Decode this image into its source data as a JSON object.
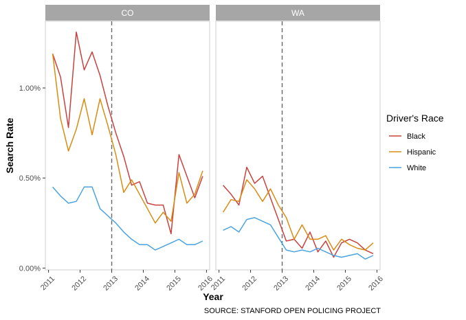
{
  "chart_data": {
    "type": "line",
    "facets": [
      "CO",
      "WA"
    ],
    "xlabel": "Year",
    "ylabel": "Search Rate",
    "caption": "SOURCE: STANFORD OPEN POLICING PROJECT",
    "x_ticks": [
      2011,
      2012,
      2013,
      2014,
      2015,
      2016
    ],
    "xlim": [
      2010.9,
      2016.1
    ],
    "y_ticks": [
      0,
      0.5,
      1.0
    ],
    "y_tick_labels": [
      "0.00%",
      "0.50%",
      "1.00%"
    ],
    "ylim": [
      -0.01,
      1.37
    ],
    "reference_line_x": 2013,
    "legend": {
      "title": "Driver's Race",
      "placement": "right",
      "entries": [
        "Black",
        "Hispanic",
        "White"
      ]
    },
    "colors": {
      "Black": "#c8413f",
      "Hispanic": "#d98b11",
      "White": "#4aa3e0"
    },
    "panels": [
      {
        "facet": "CO",
        "series": [
          {
            "name": "Black",
            "x": [
              2011.13,
              2011.38,
              2011.63,
              2011.88,
              2012.13,
              2012.38,
              2012.63,
              2012.88,
              2013.13,
              2013.38,
              2013.63,
              2013.88,
              2014.13,
              2014.38,
              2014.63,
              2014.88,
              2015.13,
              2015.38,
              2015.63,
              2015.88
            ],
            "y": [
              1.19,
              1.06,
              0.78,
              1.31,
              1.1,
              1.2,
              1.07,
              0.9,
              0.75,
              0.62,
              0.46,
              0.48,
              0.36,
              0.35,
              0.35,
              0.19,
              0.63,
              0.51,
              0.39,
              0.51
            ]
          },
          {
            "name": "Hispanic",
            "x": [
              2011.13,
              2011.38,
              2011.63,
              2011.88,
              2012.13,
              2012.38,
              2012.63,
              2012.88,
              2013.13,
              2013.38,
              2013.63,
              2013.88,
              2014.13,
              2014.38,
              2014.63,
              2014.88,
              2015.13,
              2015.38,
              2015.63,
              2015.88
            ],
            "y": [
              1.19,
              0.83,
              0.65,
              0.77,
              0.94,
              0.74,
              0.94,
              0.79,
              0.63,
              0.42,
              0.49,
              0.41,
              0.33,
              0.25,
              0.31,
              0.26,
              0.53,
              0.36,
              0.41,
              0.54
            ]
          },
          {
            "name": "White",
            "x": [
              2011.13,
              2011.38,
              2011.63,
              2011.88,
              2012.13,
              2012.38,
              2012.63,
              2012.88,
              2013.13,
              2013.38,
              2013.63,
              2013.88,
              2014.13,
              2014.38,
              2014.63,
              2014.88,
              2015.13,
              2015.38,
              2015.63,
              2015.88
            ],
            "y": [
              0.45,
              0.4,
              0.36,
              0.37,
              0.45,
              0.45,
              0.33,
              0.29,
              0.25,
              0.2,
              0.16,
              0.13,
              0.13,
              0.1,
              0.12,
              0.14,
              0.16,
              0.13,
              0.13,
              0.15
            ]
          }
        ]
      },
      {
        "facet": "WA",
        "series": [
          {
            "name": "Black",
            "x": [
              2011.13,
              2011.38,
              2011.63,
              2011.88,
              2012.13,
              2012.38,
              2012.63,
              2012.88,
              2013.13,
              2013.38,
              2013.63,
              2013.88,
              2014.13,
              2014.38,
              2014.63,
              2014.88,
              2015.13,
              2015.38,
              2015.63,
              2015.88
            ],
            "y": [
              0.46,
              0.41,
              0.35,
              0.56,
              0.47,
              0.51,
              0.39,
              0.27,
              0.15,
              0.16,
              0.11,
              0.2,
              0.09,
              0.15,
              0.06,
              0.14,
              0.16,
              0.14,
              0.1,
              0.08
            ]
          },
          {
            "name": "Hispanic",
            "x": [
              2011.13,
              2011.38,
              2011.63,
              2011.88,
              2012.13,
              2012.38,
              2012.63,
              2012.88,
              2013.13,
              2013.38,
              2013.63,
              2013.88,
              2014.13,
              2014.38,
              2014.63,
              2014.88,
              2015.13,
              2015.38,
              2015.63,
              2015.88
            ],
            "y": [
              0.31,
              0.38,
              0.37,
              0.49,
              0.44,
              0.37,
              0.44,
              0.35,
              0.28,
              0.16,
              0.24,
              0.16,
              0.16,
              0.18,
              0.1,
              0.16,
              0.13,
              0.11,
              0.1,
              0.14
            ]
          },
          {
            "name": "White",
            "x": [
              2011.13,
              2011.38,
              2011.63,
              2011.88,
              2012.13,
              2012.38,
              2012.63,
              2012.88,
              2013.13,
              2013.38,
              2013.63,
              2013.88,
              2014.13,
              2014.38,
              2014.63,
              2014.88,
              2015.13,
              2015.38,
              2015.63,
              2015.88
            ],
            "y": [
              0.21,
              0.23,
              0.2,
              0.27,
              0.28,
              0.26,
              0.24,
              0.17,
              0.1,
              0.09,
              0.1,
              0.09,
              0.11,
              0.09,
              0.07,
              0.06,
              0.07,
              0.08,
              0.05,
              0.07
            ]
          }
        ]
      }
    ]
  }
}
